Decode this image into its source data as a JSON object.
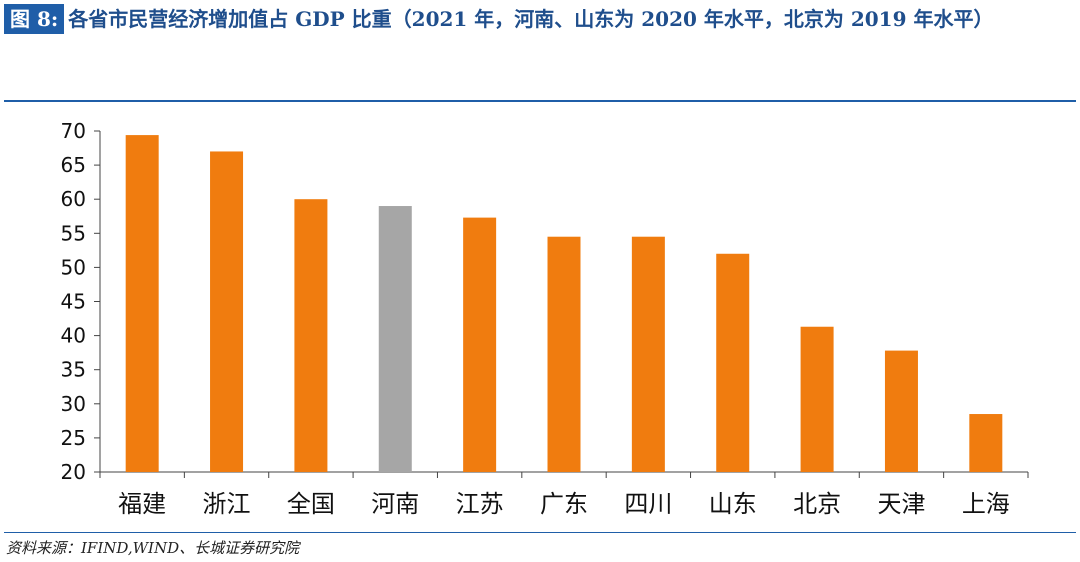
{
  "figure": {
    "label": "图 8:",
    "title": "各省市民营经济增加值占 GDP 比重（2021 年，河南、山东为 2020 年水平，北京为 2019 年水平）"
  },
  "source": "资料来源：IFIND,WIND、长城证券研究院",
  "colors": {
    "bar": "#f07c0f",
    "highlight": "#a6a6a6",
    "accent": "#1f5ea8"
  },
  "chart_data": {
    "type": "bar",
    "categories": [
      "福建",
      "浙江",
      "全国",
      "河南",
      "江苏",
      "广东",
      "四川",
      "山东",
      "北京",
      "天津",
      "上海"
    ],
    "values": [
      69.4,
      67.0,
      60.0,
      59.0,
      57.3,
      54.5,
      54.5,
      52.0,
      41.3,
      37.8,
      28.5
    ],
    "highlight": [
      "河南"
    ],
    "title": "",
    "xlabel": "",
    "ylabel": "",
    "ylim": [
      20,
      70
    ],
    "yticks": [
      20,
      25,
      30,
      35,
      40,
      45,
      50,
      55,
      60,
      65,
      70
    ],
    "grid": false
  }
}
